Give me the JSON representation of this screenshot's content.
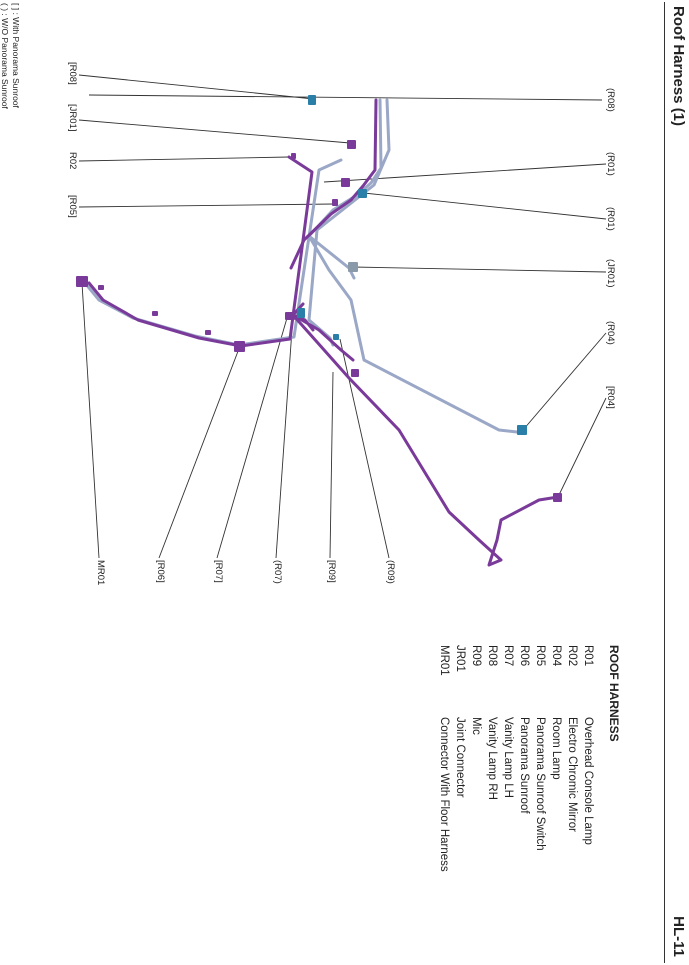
{
  "page": {
    "title": "Roof Harness (1)",
    "page_number": "HL-11"
  },
  "legend": {
    "heading": "ROOF HARNESS",
    "items": [
      {
        "code": "R01",
        "name": "Overhead Console Lamp"
      },
      {
        "code": "R02",
        "name": "Electro Chromic Mirror"
      },
      {
        "code": "R04",
        "name": "Room Lamp"
      },
      {
        "code": "R05",
        "name": "Panorama Sunroof Switch"
      },
      {
        "code": "R06",
        "name": "Panorama Sunroof"
      },
      {
        "code": "R07",
        "name": "Vanity Lamp LH"
      },
      {
        "code": "R08",
        "name": "Vanity Lamp RH"
      },
      {
        "code": "R09",
        "name": "Mic"
      },
      {
        "code": "JR01",
        "name": "Joint Connector"
      },
      {
        "code": "MR01",
        "name": "Connector With Floor Harness"
      }
    ]
  },
  "notes": [
    "[ ] : With Panorama Sunroof",
    "( ) : W/O Panorama Sunroof"
  ],
  "callouts": {
    "top": [
      "(R08)",
      "(R01)",
      "(R01)",
      "(JR01)",
      "(R04)",
      "[R04]"
    ],
    "left": [
      "[R08]",
      "[JR01]",
      "R02",
      "[R05]"
    ],
    "bottom": [
      "(R09)",
      "[R09]",
      "(R07)",
      "[R07]",
      "[R06]",
      "MR01"
    ]
  },
  "colors": {
    "harness_purple": "#7a3a9a",
    "harness_grey": "#9aa7c6",
    "connector_blue": "#2a7fa8",
    "leader": "#333333"
  }
}
